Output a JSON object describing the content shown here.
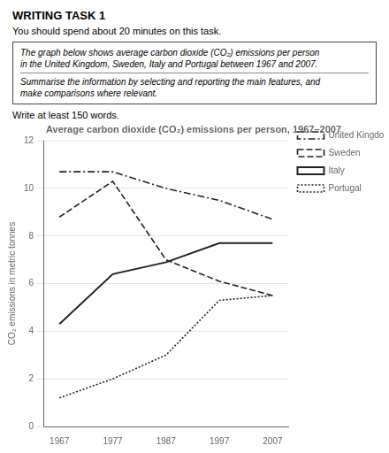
{
  "chart_data": {
    "type": "line",
    "header": "WRITING TASK 1",
    "subtitle": "You should spend about 20 minutes on this task.",
    "annotations": [
      "The graph below shows average carbon dioxide (CO₂) emissions per person",
      "in the United Kingdom, Sweden, Italy and Portugal between 1967 and 2007.",
      "Summarise the information by selecting and reporting the main features, and",
      "make comparisons where relevant."
    ],
    "note": "Write at least 150 words.",
    "title": "Average carbon dioxide (CO₂) emissions per person, 1967–2007",
    "y_label": "CO₂ emissions in metric tonnes",
    "x": [
      1967,
      1977,
      1987,
      1997,
      2007
    ],
    "series": [
      {
        "name": "United Kingdom",
        "color": "#222222",
        "line_style": "dashdot",
        "values": [
          10.7,
          10.7,
          10.0,
          9.5,
          8.7
        ]
      },
      {
        "name": "Sweden",
        "color": "#222222",
        "line_style": "dashed",
        "values": [
          8.8,
          10.3,
          7.0,
          6.1,
          5.5
        ]
      },
      {
        "name": "Italy",
        "color": "#222222",
        "line_style": "solid",
        "values": [
          4.3,
          6.4,
          6.9,
          7.7,
          7.7
        ]
      },
      {
        "name": "Portugal",
        "color": "#222222",
        "line_style": "dotted",
        "values": [
          1.2,
          2.0,
          3.0,
          5.3,
          5.5
        ]
      }
    ],
    "xlim": [
      1964,
      2010
    ],
    "xticks": [
      1967,
      1977,
      1987,
      1997,
      2007
    ],
    "ylim": [
      0,
      12
    ],
    "yticks": [
      0,
      2,
      4,
      6,
      8,
      10,
      12
    ],
    "grid": "y",
    "legend": "right"
  }
}
